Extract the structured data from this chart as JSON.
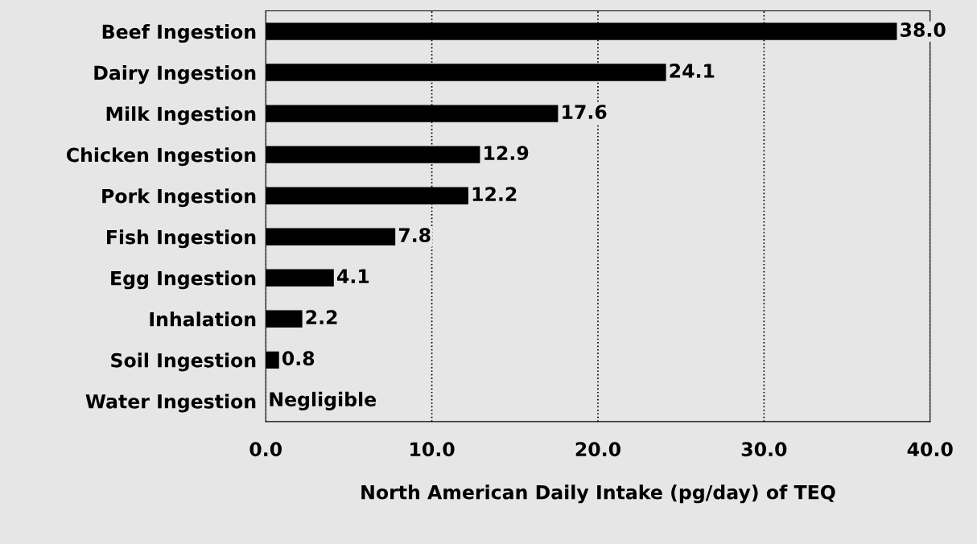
{
  "chart_data": {
    "type": "bar",
    "orientation": "horizontal",
    "xlabel": "North American Daily Intake (pg/day) of TEQ",
    "categories": [
      "Beef Ingestion",
      "Dairy Ingestion",
      "Milk Ingestion",
      "Chicken Ingestion",
      "Pork Ingestion",
      "Fish Ingestion",
      "Egg Ingestion",
      "Inhalation",
      "Soil Ingestion",
      "Water Ingestion"
    ],
    "values": [
      38.0,
      24.1,
      17.6,
      12.9,
      12.2,
      7.8,
      4.1,
      2.2,
      0.8,
      null
    ],
    "value_labels": [
      "38.0",
      "24.1",
      "17.6",
      "12.9",
      "12.2",
      "7.8",
      "4.1",
      "2.2",
      "0.8",
      "Negligible"
    ],
    "color": "#000000",
    "xlim": [
      0,
      40
    ],
    "xticks": [
      {
        "value": 0,
        "label": "0.0"
      },
      {
        "value": 10,
        "label": "10.0"
      },
      {
        "value": 20,
        "label": "20.0"
      },
      {
        "value": 30,
        "label": "30.0"
      },
      {
        "value": 40,
        "label": "40.0"
      }
    ],
    "grid": "x"
  }
}
